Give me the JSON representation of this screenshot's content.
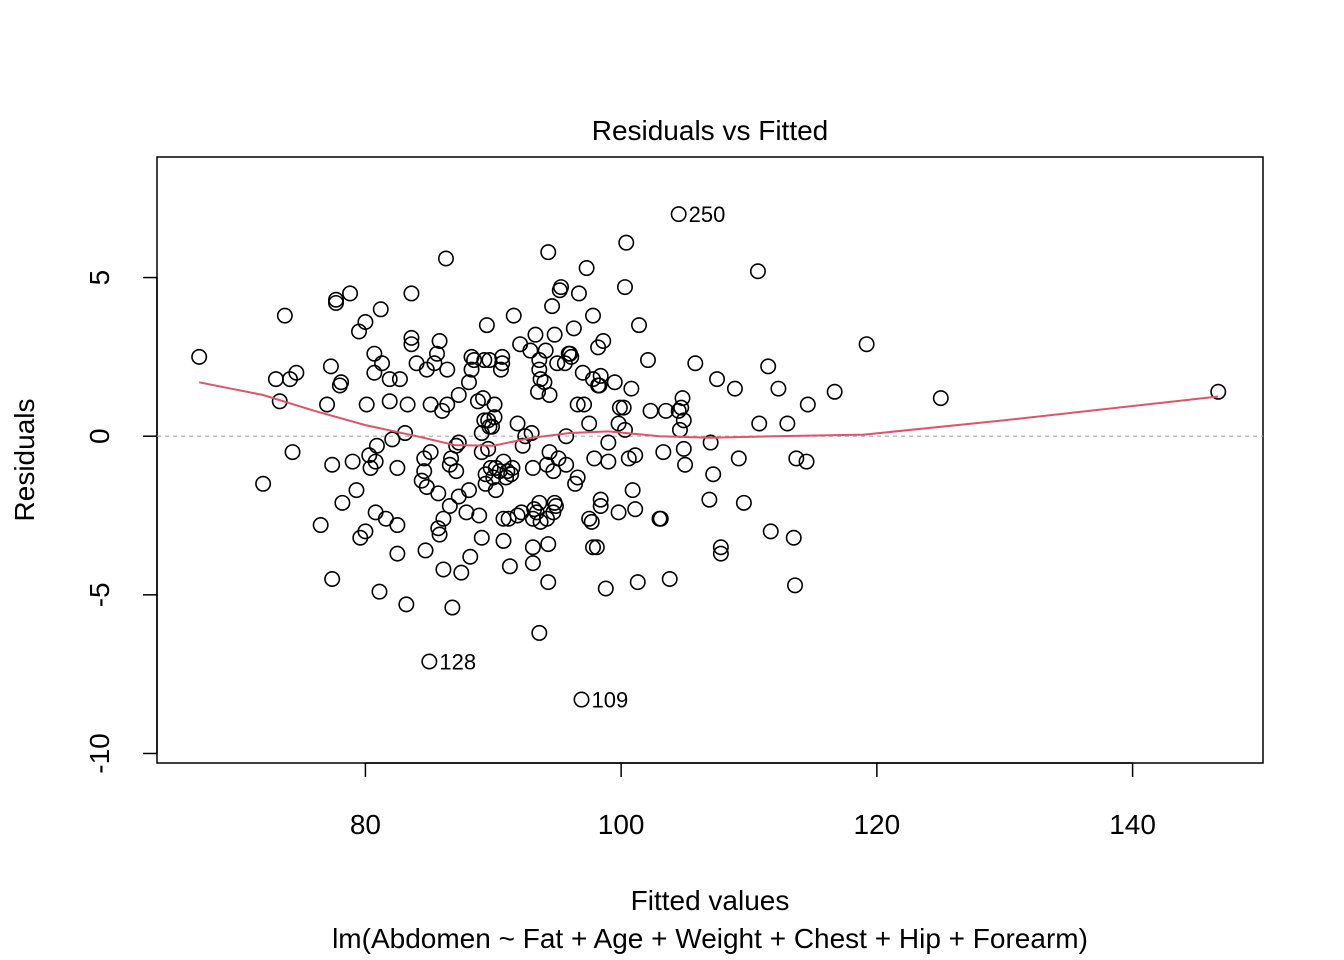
{
  "chart_data": {
    "type": "scatter",
    "title": "Residuals vs Fitted",
    "xlabel": "Fitted values",
    "ylabel": "Residuals",
    "subtitle": "lm(Abdomen ~ Fat + Age + Weight + Chest + Hip + Forearm)",
    "xlim": [
      63.7,
      150.2
    ],
    "ylim": [
      -10.3,
      8.8
    ],
    "x_ticks": [
      80,
      100,
      120,
      140
    ],
    "y_ticks": [
      -10,
      -5,
      0,
      5
    ],
    "reference_line": 0,
    "colors": {
      "points": "#000000",
      "smoother": "#DF536B",
      "reference": "#A9A9A9",
      "box": "#000000"
    },
    "points": [
      [
        67.0,
        2.5
      ],
      [
        72.0,
        -1.5
      ],
      [
        73.0,
        1.8
      ],
      [
        73.3,
        1.1
      ],
      [
        73.7,
        3.8
      ],
      [
        74.1,
        1.8
      ],
      [
        74.3,
        -0.5
      ],
      [
        74.6,
        2.0
      ],
      [
        76.5,
        -2.8
      ],
      [
        77.0,
        1.0
      ],
      [
        77.3,
        2.2
      ],
      [
        77.4,
        -0.9
      ],
      [
        77.4,
        -4.5
      ],
      [
        77.7,
        4.3
      ],
      [
        77.7,
        4.2
      ],
      [
        78.0,
        1.6
      ],
      [
        78.1,
        1.7
      ],
      [
        78.2,
        -2.1
      ],
      [
        78.8,
        4.5
      ],
      [
        79.0,
        -0.8
      ],
      [
        79.3,
        -1.7
      ],
      [
        79.5,
        3.3
      ],
      [
        79.6,
        -3.2
      ],
      [
        80.0,
        3.6
      ],
      [
        80.0,
        -3.0
      ],
      [
        80.1,
        1.0
      ],
      [
        80.3,
        -0.6
      ],
      [
        80.4,
        -1.0
      ],
      [
        80.7,
        2.6
      ],
      [
        80.7,
        2.0
      ],
      [
        80.8,
        -0.8
      ],
      [
        80.8,
        -2.4
      ],
      [
        80.9,
        -0.3
      ],
      [
        81.1,
        -4.9
      ],
      [
        81.2,
        4.0
      ],
      [
        81.3,
        2.3
      ],
      [
        81.6,
        -2.6
      ],
      [
        81.9,
        1.8
      ],
      [
        81.9,
        1.1
      ],
      [
        82.1,
        -0.1
      ],
      [
        82.5,
        -1.0
      ],
      [
        82.5,
        -2.8
      ],
      [
        82.5,
        -3.7
      ],
      [
        82.7,
        1.8
      ],
      [
        83.1,
        0.1
      ],
      [
        83.2,
        -5.3
      ],
      [
        83.3,
        1.0
      ],
      [
        83.6,
        4.5
      ],
      [
        83.6,
        3.1
      ],
      [
        83.6,
        2.9
      ],
      [
        84.0,
        2.3
      ],
      [
        84.4,
        -1.4
      ],
      [
        84.6,
        -1.1
      ],
      [
        84.6,
        -0.7
      ],
      [
        84.7,
        -3.6
      ],
      [
        84.8,
        -1.6
      ],
      [
        84.8,
        2.1
      ],
      [
        85.0,
        -7.1
      ],
      [
        85.1,
        -0.5
      ],
      [
        85.1,
        1.0
      ],
      [
        85.4,
        2.3
      ],
      [
        85.6,
        2.6
      ],
      [
        85.7,
        -2.9
      ],
      [
        85.7,
        -1.8
      ],
      [
        85.8,
        -3.1
      ],
      [
        85.8,
        3.0
      ],
      [
        86.0,
        0.8
      ],
      [
        86.1,
        -4.2
      ],
      [
        86.1,
        -2.6
      ],
      [
        86.3,
        5.6
      ],
      [
        86.4,
        1.0
      ],
      [
        86.4,
        2.1
      ],
      [
        86.6,
        -2.2
      ],
      [
        86.6,
        -0.9
      ],
      [
        86.7,
        -0.7
      ],
      [
        86.8,
        -5.4
      ],
      [
        87.1,
        -0.3
      ],
      [
        87.1,
        -1.1
      ],
      [
        87.3,
        1.3
      ],
      [
        87.3,
        -1.9
      ],
      [
        87.3,
        -0.2
      ],
      [
        87.5,
        -4.3
      ],
      [
        87.9,
        -2.4
      ],
      [
        88.1,
        -1.7
      ],
      [
        88.1,
        1.7
      ],
      [
        88.2,
        -3.8
      ],
      [
        88.3,
        2.5
      ],
      [
        88.3,
        2.1
      ],
      [
        88.5,
        2.4
      ],
      [
        88.8,
        1.1
      ],
      [
        88.9,
        -2.5
      ],
      [
        89.1,
        0.1
      ],
      [
        89.1,
        -0.5
      ],
      [
        89.1,
        -3.2
      ],
      [
        89.2,
        1.2
      ],
      [
        89.3,
        2.4
      ],
      [
        89.3,
        0.5
      ],
      [
        89.4,
        -1.2
      ],
      [
        89.4,
        -1.5
      ],
      [
        89.5,
        3.5
      ],
      [
        89.6,
        -0.4
      ],
      [
        89.6,
        0.5
      ],
      [
        89.7,
        2.4
      ],
      [
        89.7,
        0.3
      ],
      [
        89.8,
        -1.0
      ],
      [
        89.9,
        0.3
      ],
      [
        90.0,
        -1.3
      ],
      [
        90.1,
        0.6
      ],
      [
        90.1,
        1.0
      ],
      [
        90.2,
        -1.7
      ],
      [
        90.2,
        -1.0
      ],
      [
        90.5,
        -1.1
      ],
      [
        90.6,
        2.1
      ],
      [
        90.7,
        2.5
      ],
      [
        90.7,
        2.3
      ],
      [
        90.8,
        -0.8
      ],
      [
        90.8,
        -2.6
      ],
      [
        90.8,
        -3.3
      ],
      [
        91.0,
        -1.3
      ],
      [
        91.1,
        -1.1
      ],
      [
        91.2,
        -2.6
      ],
      [
        91.3,
        -4.1
      ],
      [
        91.4,
        -1.2
      ],
      [
        91.5,
        -1.0
      ],
      [
        91.6,
        3.8
      ],
      [
        91.9,
        -2.5
      ],
      [
        91.9,
        0.4
      ],
      [
        92.1,
        2.9
      ],
      [
        92.2,
        -2.4
      ],
      [
        92.3,
        -0.3
      ],
      [
        92.5,
        0.0
      ],
      [
        92.9,
        2.7
      ],
      [
        93.0,
        0.1
      ],
      [
        93.1,
        -4.0
      ],
      [
        93.1,
        -3.5
      ],
      [
        93.1,
        -2.6
      ],
      [
        93.1,
        -1.0
      ],
      [
        93.2,
        -2.3
      ],
      [
        93.3,
        3.2
      ],
      [
        93.4,
        -2.4
      ],
      [
        93.5,
        1.4
      ],
      [
        93.6,
        -2.1
      ],
      [
        93.6,
        2.1
      ],
      [
        93.6,
        -6.2
      ],
      [
        93.6,
        2.4
      ],
      [
        93.7,
        -2.7
      ],
      [
        93.7,
        1.8
      ],
      [
        94.0,
        1.7
      ],
      [
        94.1,
        2.7
      ],
      [
        94.2,
        -0.9
      ],
      [
        94.2,
        -2.6
      ],
      [
        94.3,
        -3.4
      ],
      [
        94.3,
        5.8
      ],
      [
        94.3,
        -4.6
      ],
      [
        94.4,
        1.3
      ],
      [
        94.4,
        -0.5
      ],
      [
        94.6,
        4.1
      ],
      [
        94.7,
        -1.1
      ],
      [
        94.7,
        -2.4
      ],
      [
        94.8,
        -2.1
      ],
      [
        94.8,
        3.2
      ],
      [
        94.9,
        -2.2
      ],
      [
        95.0,
        2.3
      ],
      [
        95.1,
        -0.7
      ],
      [
        95.2,
        4.6
      ],
      [
        95.3,
        4.7
      ],
      [
        95.6,
        2.3
      ],
      [
        95.7,
        0.0
      ],
      [
        95.7,
        -0.9
      ],
      [
        95.9,
        2.6
      ],
      [
        96.0,
        2.6
      ],
      [
        96.1,
        2.5
      ],
      [
        96.3,
        3.4
      ],
      [
        96.4,
        -1.5
      ],
      [
        96.6,
        -1.3
      ],
      [
        96.6,
        1.0
      ],
      [
        96.7,
        4.5
      ],
      [
        96.9,
        -8.3
      ],
      [
        97.0,
        2.0
      ],
      [
        97.1,
        1.0
      ],
      [
        97.3,
        5.3
      ],
      [
        97.5,
        0.4
      ],
      [
        97.5,
        -2.6
      ],
      [
        97.7,
        -2.7
      ],
      [
        97.8,
        -3.5
      ],
      [
        97.8,
        1.8
      ],
      [
        97.8,
        3.8
      ],
      [
        97.9,
        -0.7
      ],
      [
        98.1,
        -3.5
      ],
      [
        98.2,
        1.6
      ],
      [
        98.2,
        2.8
      ],
      [
        98.3,
        1.6
      ],
      [
        98.4,
        -2.0
      ],
      [
        98.4,
        -2.2
      ],
      [
        98.4,
        1.9
      ],
      [
        98.6,
        3.0
      ],
      [
        98.8,
        -4.8
      ],
      [
        99.0,
        -0.2
      ],
      [
        99.0,
        -0.8
      ],
      [
        99.5,
        1.7
      ],
      [
        99.8,
        0.4
      ],
      [
        99.8,
        -2.4
      ],
      [
        99.9,
        0.9
      ],
      [
        100.2,
        0.9
      ],
      [
        100.3,
        4.7
      ],
      [
        100.3,
        0.2
      ],
      [
        100.4,
        6.1
      ],
      [
        100.6,
        -0.7
      ],
      [
        100.8,
        1.5
      ],
      [
        100.9,
        -1.7
      ],
      [
        101.1,
        -0.6
      ],
      [
        101.1,
        -2.3
      ],
      [
        101.3,
        -4.6
      ],
      [
        101.4,
        3.5
      ],
      [
        102.1,
        2.4
      ],
      [
        102.3,
        0.8
      ],
      [
        103.0,
        -2.6
      ],
      [
        103.1,
        -2.6
      ],
      [
        103.3,
        -0.5
      ],
      [
        103.5,
        0.8
      ],
      [
        103.8,
        -4.5
      ],
      [
        104.5,
        7.0
      ],
      [
        104.5,
        0.8
      ],
      [
        104.6,
        0.2
      ],
      [
        104.7,
        0.9
      ],
      [
        104.8,
        1.2
      ],
      [
        104.9,
        -0.4
      ],
      [
        104.9,
        0.5
      ],
      [
        105.0,
        -0.9
      ],
      [
        105.8,
        2.3
      ],
      [
        106.9,
        -2.0
      ],
      [
        107.0,
        -0.2
      ],
      [
        107.2,
        -1.2
      ],
      [
        107.5,
        1.8
      ],
      [
        107.8,
        -3.7
      ],
      [
        107.8,
        -3.5
      ],
      [
        108.9,
        1.5
      ],
      [
        109.2,
        -0.7
      ],
      [
        109.6,
        -2.1
      ],
      [
        110.7,
        5.2
      ],
      [
        110.8,
        0.4
      ],
      [
        111.5,
        2.2
      ],
      [
        111.7,
        -3.0
      ],
      [
        112.3,
        1.5
      ],
      [
        113.0,
        0.4
      ],
      [
        113.5,
        -3.2
      ],
      [
        113.6,
        -4.7
      ],
      [
        113.7,
        -0.7
      ],
      [
        114.5,
        -0.8
      ],
      [
        114.6,
        1.0
      ],
      [
        116.7,
        1.4
      ],
      [
        119.2,
        2.9
      ],
      [
        125.0,
        1.2
      ],
      [
        146.7,
        1.4
      ]
    ],
    "smoother": [
      [
        67.0,
        1.7
      ],
      [
        72.0,
        1.3
      ],
      [
        76.0,
        0.8
      ],
      [
        80.0,
        0.35
      ],
      [
        84.0,
        0.0
      ],
      [
        87.0,
        -0.28
      ],
      [
        90.0,
        -0.3
      ],
      [
        93.0,
        -0.05
      ],
      [
        96.0,
        0.1
      ],
      [
        99.0,
        0.15
      ],
      [
        103.0,
        0.0
      ],
      [
        107.0,
        -0.05
      ],
      [
        112.0,
        0.0
      ],
      [
        119.0,
        0.05
      ],
      [
        130.0,
        0.5
      ],
      [
        146.7,
        1.25
      ]
    ],
    "labeled_points": [
      {
        "x": 104.5,
        "y": 7.0,
        "label": "250"
      },
      {
        "x": 85.0,
        "y": -7.1,
        "label": "128"
      },
      {
        "x": 96.9,
        "y": -8.3,
        "label": "109"
      }
    ]
  }
}
